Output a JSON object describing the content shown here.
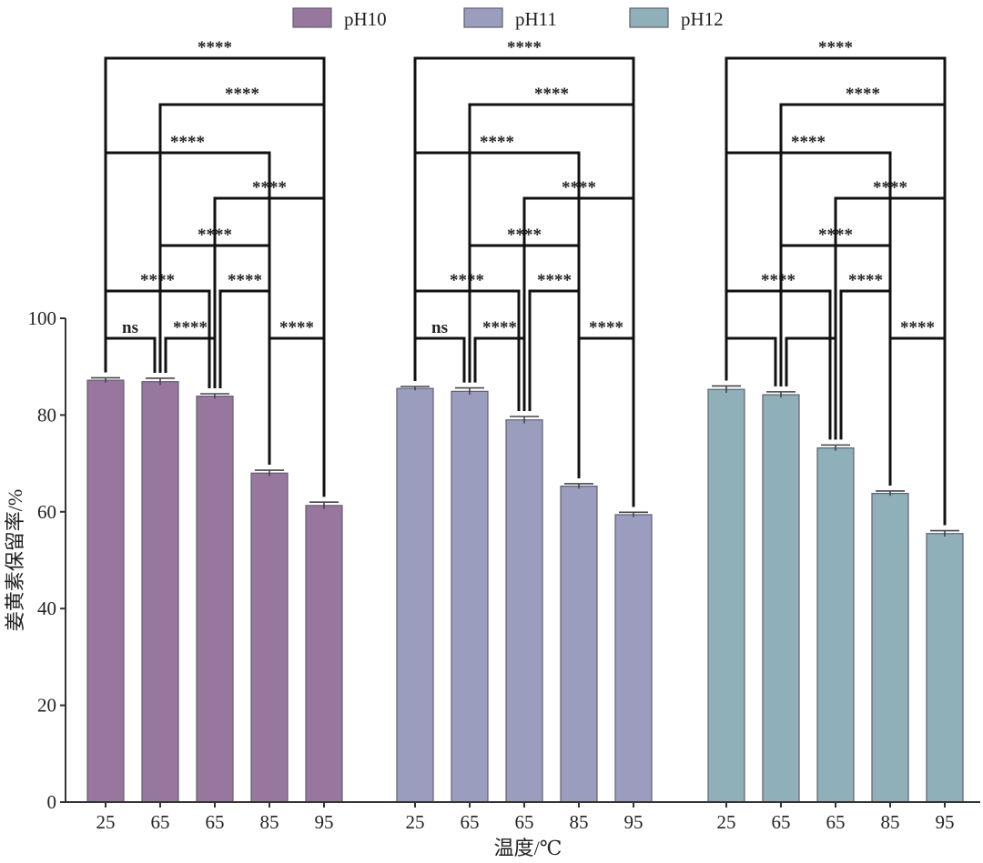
{
  "chart_data": {
    "type": "bar",
    "title": "",
    "xlabel": "温度/℃",
    "ylabel": "姜黄素保留率/%",
    "ylim": [
      0,
      100
    ],
    "yticks": [
      0,
      20,
      40,
      60,
      80,
      100
    ],
    "legend_position": "top",
    "colors": {
      "pH10": "#98779f",
      "pH11": "#9b9dbe",
      "pH12": "#8fb0b9",
      "edge": "#5f5f6e"
    },
    "groups": [
      {
        "name": "pH10",
        "categories": [
          "25",
          "65",
          "65",
          "85",
          "95"
        ],
        "values": [
          87.2,
          86.9,
          83.9,
          68.0,
          61.3
        ],
        "errors": [
          0.5,
          0.7,
          0.5,
          0.6,
          0.7
        ],
        "comparisons": [
          {
            "a": 0,
            "b": 1,
            "label": "ns"
          },
          {
            "a": 1,
            "b": 2,
            "label": "****"
          },
          {
            "a": 3,
            "b": 4,
            "label": "****"
          },
          {
            "a": 0,
            "b": 2,
            "label": "****"
          },
          {
            "a": 2,
            "b": 3,
            "label": "****"
          },
          {
            "a": 1,
            "b": 3,
            "label": "****"
          },
          {
            "a": 2,
            "b": 4,
            "label": "****"
          },
          {
            "a": 0,
            "b": 3,
            "label": "****"
          },
          {
            "a": 1,
            "b": 4,
            "label": "****"
          },
          {
            "a": 0,
            "b": 4,
            "label": "****"
          }
        ]
      },
      {
        "name": "pH11",
        "categories": [
          "25",
          "65",
          "65",
          "85",
          "95"
        ],
        "values": [
          85.5,
          84.9,
          79.0,
          65.3,
          59.4
        ],
        "errors": [
          0.4,
          0.7,
          0.7,
          0.5,
          0.5
        ],
        "comparisons": [
          {
            "a": 0,
            "b": 1,
            "label": "ns"
          },
          {
            "a": 1,
            "b": 2,
            "label": "****"
          },
          {
            "a": 3,
            "b": 4,
            "label": "****"
          },
          {
            "a": 0,
            "b": 2,
            "label": "****"
          },
          {
            "a": 2,
            "b": 3,
            "label": "****"
          },
          {
            "a": 1,
            "b": 3,
            "label": "****"
          },
          {
            "a": 2,
            "b": 4,
            "label": "****"
          },
          {
            "a": 0,
            "b": 3,
            "label": "****"
          },
          {
            "a": 1,
            "b": 4,
            "label": "****"
          },
          {
            "a": 0,
            "b": 4,
            "label": "****"
          }
        ]
      },
      {
        "name": "pH12",
        "categories": [
          "25",
          "65",
          "65",
          "85",
          "95"
        ],
        "values": [
          85.3,
          84.2,
          73.2,
          63.8,
          55.5
        ],
        "errors": [
          0.7,
          0.6,
          0.6,
          0.5,
          0.6
        ],
        "comparisons": [
          {
            "a": 0,
            "b": 1,
            "label": ""
          },
          {
            "a": 1,
            "b": 2,
            "label": ""
          },
          {
            "a": 3,
            "b": 4,
            "label": "****"
          },
          {
            "a": 0,
            "b": 2,
            "label": "****"
          },
          {
            "a": 2,
            "b": 3,
            "label": "****"
          },
          {
            "a": 1,
            "b": 3,
            "label": "****"
          },
          {
            "a": 2,
            "b": 4,
            "label": "****"
          },
          {
            "a": 0,
            "b": 3,
            "label": "****"
          },
          {
            "a": 1,
            "b": 4,
            "label": "****"
          },
          {
            "a": 0,
            "b": 4,
            "label": "****"
          }
        ]
      }
    ]
  }
}
